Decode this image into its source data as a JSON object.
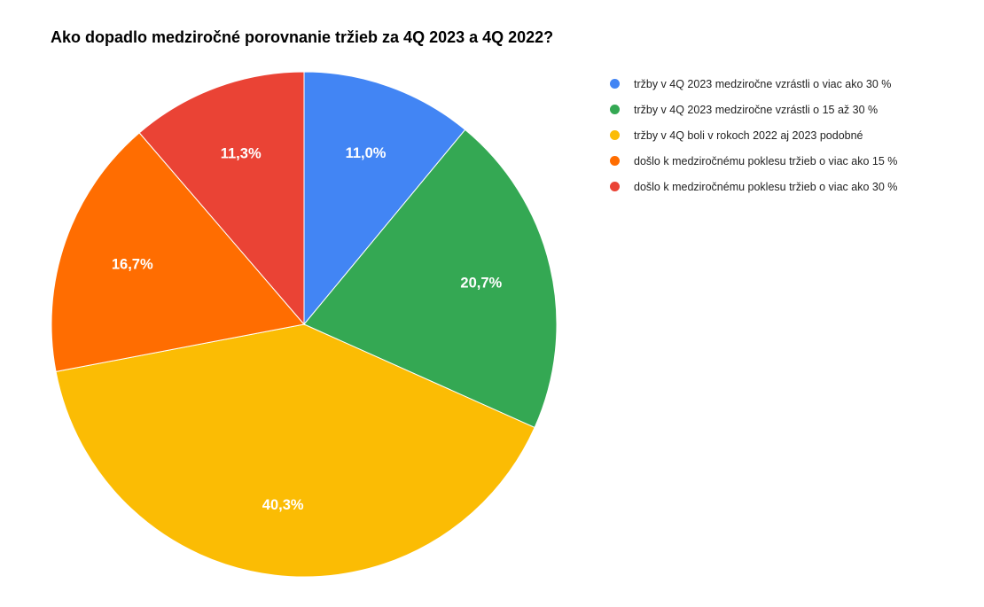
{
  "chart_data": {
    "type": "pie",
    "title": "Ako dopadlo medziročné porovnanie tržieb za 4Q 2023 a 4Q 2022?",
    "legend_position": "right",
    "slices": [
      {
        "label": "tržby v 4Q 2023 medziročne vzrástli o viac ako 30 %",
        "value": 11.0,
        "display": "11,0%",
        "color": "#4285F4"
      },
      {
        "label": "tržby v 4Q 2023 medziročne vzrástli o 15 až 30 %",
        "value": 20.7,
        "display": "20,7%",
        "color": "#34A853"
      },
      {
        "label": "tržby v 4Q boli v rokoch 2022 aj 2023 podobné",
        "value": 40.3,
        "display": "40,3%",
        "color": "#FBBC04"
      },
      {
        "label": "došlo k medziročnému poklesu tržieb o viac ako 15 %",
        "value": 16.7,
        "display": "16,7%",
        "color": "#FF6D01"
      },
      {
        "label": "došlo k medziročnému poklesu tržieb o viac ako 30 %",
        "value": 11.3,
        "display": "11,3%",
        "color": "#EA4335"
      }
    ]
  }
}
